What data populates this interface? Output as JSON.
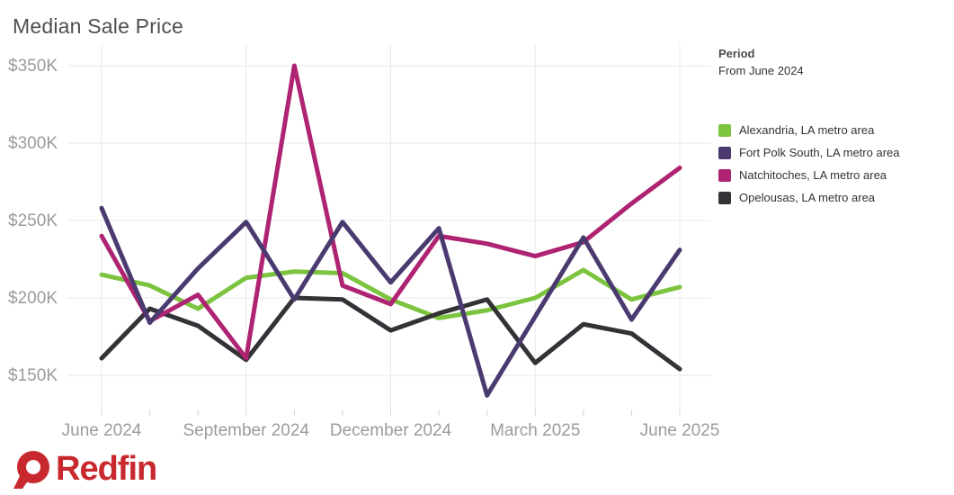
{
  "title": "Median Sale Price",
  "period": {
    "label": "Period",
    "value": "From June 2024"
  },
  "logo": {
    "text": "Redfin"
  },
  "colors": {
    "background": "#ffffff",
    "gridline": "#e9e9e9",
    "tick": "#d4d4d4",
    "axis_text": "#9b9b9b",
    "title_text": "#4f4f4f",
    "legend_text": "#333333",
    "logo_red": "#C8292E"
  },
  "chart_data": {
    "type": "line",
    "title": "Median Sale Price",
    "unit": "USD thousands (values are $K)",
    "x": [
      "June 2024",
      "July 2024",
      "August 2024",
      "September 2024",
      "October 2024",
      "November 2024",
      "December 2024",
      "January 2025",
      "February 2025",
      "March 2025",
      "April 2025",
      "May 2025",
      "June 2025"
    ],
    "x_axis_shown_labels": [
      {
        "index": 0,
        "label": "June 2024"
      },
      {
        "index": 3,
        "label": "September 2024"
      },
      {
        "index": 6,
        "label": "December 2024"
      },
      {
        "index": 9,
        "label": "March 2025"
      },
      {
        "index": 12,
        "label": "June 2025"
      }
    ],
    "y_ticks": [
      {
        "value": 150,
        "label": "$150K"
      },
      {
        "value": 200,
        "label": "$200K"
      },
      {
        "value": 250,
        "label": "$250K"
      },
      {
        "value": 300,
        "label": "$300K"
      },
      {
        "value": 350,
        "label": "$350K"
      }
    ],
    "ylim": [
      128,
      362
    ],
    "grid": "horizontal lines at every tick; vertical lines at labeled months only",
    "legend_position": "right",
    "series": [
      {
        "name": "Alexandria, LA metro area",
        "slug": "alexandria",
        "color": "#7CC43F",
        "values": [
          215,
          208,
          193,
          213,
          217,
          216,
          199,
          187,
          192,
          200,
          218,
          199,
          207
        ]
      },
      {
        "name": "Fort Polk South, LA metro area",
        "slug": "fort-polk-south",
        "color": "#4A3A70",
        "values": [
          258,
          184,
          219,
          249,
          199,
          249,
          210,
          245,
          137,
          188,
          239,
          186,
          231
        ]
      },
      {
        "name": "Natchitoches, LA metro area",
        "slug": "natchitoches",
        "color": "#AE2372",
        "values": [
          240,
          185,
          202,
          161,
          350,
          208,
          196,
          240,
          235,
          227,
          236,
          261,
          284
        ]
      },
      {
        "name": "Opelousas, LA metro area",
        "slug": "opelousas",
        "color": "#323237",
        "values": [
          161,
          193,
          182,
          160,
          200,
          199,
          179,
          190,
          199,
          158,
          183,
          177,
          154
        ]
      }
    ],
    "draw_order": [
      "alexandria",
      "opelousas",
      "natchitoches",
      "fort-polk-south"
    ]
  }
}
